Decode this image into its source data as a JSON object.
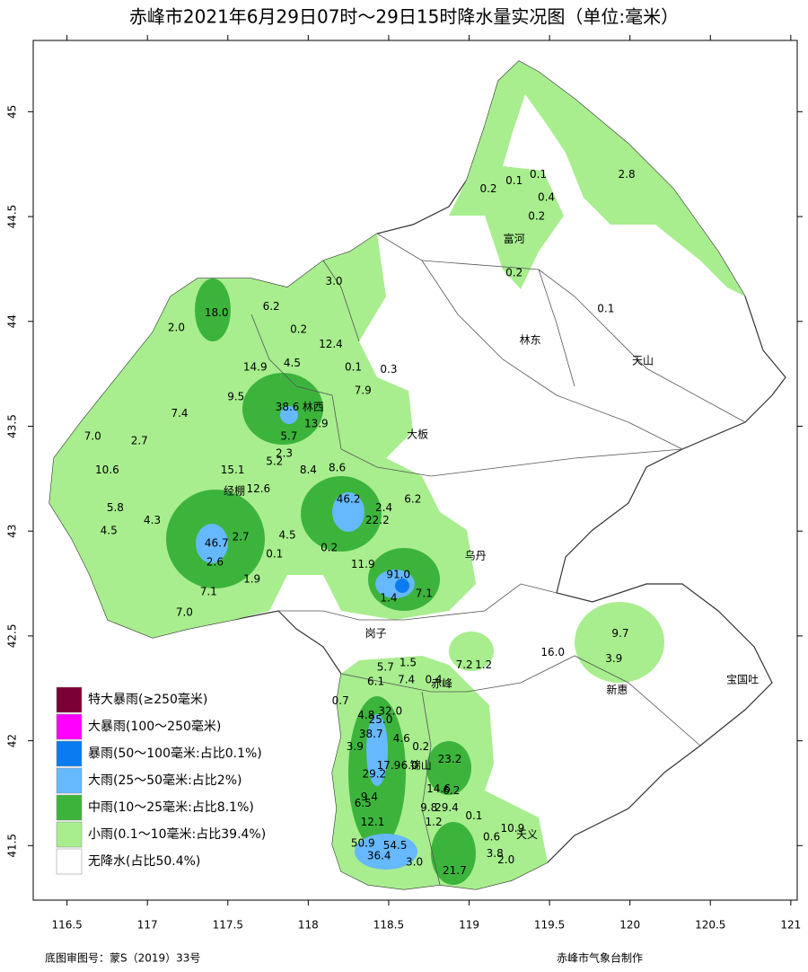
{
  "title": "赤峰市2021年6月29日07时～29日15时降水量实况图（单位:毫米）",
  "footer_left": "底图审图号：蒙S（2019）33号",
  "footer_right": "赤峰市气象台制作",
  "legend": [
    {
      "label": "特大暴雨(≥250毫米)",
      "color": "#7a0036"
    },
    {
      "label": "大暴雨(100～250毫米)",
      "color": "#ff00ff"
    },
    {
      "label": "暴雨(50～100毫米:占比0.1%)",
      "color": "#0a7cf0"
    },
    {
      "label": "大雨(25～50毫米:占比2%)",
      "color": "#66b8ff"
    },
    {
      "label": "中雨(10～25毫米:占比8.1%)",
      "color": "#3cb43c"
    },
    {
      "label": "小雨(0.1～10毫米:占比39.4%)",
      "color": "#a8ee8e"
    },
    {
      "label": "无降水(占比50.4%)",
      "color": "#ffffff"
    }
  ],
  "map": {
    "xlim": [
      116.29,
      121.04
    ],
    "ylim": [
      41.24,
      45.34
    ],
    "xticks": [
      116.5,
      117,
      117.5,
      118,
      118.5,
      119,
      119.5,
      120,
      120.5,
      121
    ],
    "yticks": [
      41.5,
      42,
      42.5,
      43,
      43.5,
      44,
      44.5,
      45
    ],
    "rain": {
      "lon": [
        119.98,
        119.43,
        119.28,
        119.12,
        119.48,
        119.42,
        119.28,
        119.85,
        117.43,
        117.18,
        117.77,
        118.16,
        117.94,
        118.14,
        117.67,
        117.9,
        118.28,
        118.5,
        117.55,
        118.34,
        117.87,
        118.05,
        117.2,
        116.66,
        116.95,
        117.88,
        117.85,
        117.79,
        116.75,
        117.53,
        118.0,
        118.18,
        117.69,
        118.25,
        118.65,
        118.47,
        116.8,
        118.43,
        117.03,
        116.76,
        117.58,
        117.87,
        117.43,
        118.13,
        117.79,
        117.42,
        118.34,
        118.56,
        117.65,
        117.38,
        118.72,
        118.5,
        117.23,
        119.94,
        119.9,
        119.52,
        118.97,
        119.09,
        118.62,
        118.48,
        118.42,
        118.61,
        118.78,
        118.2,
        118.51,
        118.36,
        118.45,
        118.39,
        118.58,
        118.7,
        118.29,
        118.88,
        118.5,
        118.63,
        118.41,
        118.81,
        118.89,
        118.38,
        118.34,
        118.75,
        118.86,
        119.03,
        118.4,
        118.78,
        119.27,
        118.34,
        118.54,
        119.14,
        118.44,
        119.16,
        119.23,
        118.66,
        118.91
      ],
      "lat": [
        44.7,
        44.7,
        44.67,
        44.63,
        44.59,
        44.5,
        44.23,
        44.06,
        44.04,
        43.97,
        44.07,
        44.19,
        43.96,
        43.89,
        43.78,
        43.8,
        43.78,
        43.77,
        43.64,
        43.67,
        43.59,
        43.51,
        43.56,
        43.45,
        43.43,
        43.45,
        43.37,
        43.33,
        43.29,
        43.29,
        43.29,
        43.3,
        43.2,
        43.15,
        43.15,
        43.11,
        43.11,
        43.05,
        43.05,
        43.0,
        42.97,
        42.98,
        42.94,
        42.92,
        42.89,
        42.85,
        42.84,
        42.79,
        42.77,
        42.71,
        42.7,
        42.68,
        42.61,
        42.51,
        42.39,
        42.42,
        42.36,
        42.36,
        42.37,
        42.35,
        42.28,
        42.29,
        42.29,
        42.19,
        42.14,
        42.12,
        42.1,
        42.03,
        42.01,
        41.97,
        41.97,
        41.91,
        41.88,
        41.88,
        41.84,
        41.77,
        41.76,
        41.73,
        41.7,
        41.68,
        41.68,
        41.64,
        41.61,
        41.61,
        41.58,
        41.51,
        41.5,
        41.54,
        41.45,
        41.46,
        41.43,
        41.42,
        41.38
      ],
      "values": [
        2.8,
        0.1,
        0.1,
        0.2,
        0.4,
        0.2,
        0.2,
        0.1,
        18,
        2,
        6.2,
        3,
        0.2,
        12.4,
        14.9,
        4.5,
        0.1,
        0.3,
        9.5,
        7.9,
        38.6,
        13.9,
        7.4,
        7,
        2.7,
        5.7,
        2.3,
        5.2,
        10.6,
        15.1,
        8.4,
        8.6,
        12.6,
        46.2,
        6.2,
        2.4,
        5.8,
        22.2,
        4.3,
        4.5,
        2.7,
        4.5,
        46.7,
        0.2,
        0.1,
        2.6,
        11.9,
        91,
        1.9,
        7.1,
        7.1,
        1.4,
        7,
        9.7,
        3.9,
        16,
        7.2,
        1.2,
        1.5,
        5.7,
        6.1,
        7.4,
        0.4,
        0.7,
        32,
        4.8,
        25,
        38.7,
        4.6,
        0.2,
        3.9,
        23.2,
        17.9,
        6,
        29.2,
        14.6,
        6.2,
        9.4,
        6.5,
        9.8,
        29.4,
        0.1,
        12.1,
        1.2,
        10.9,
        50.9,
        54.5,
        0.6,
        36.4,
        3.8,
        2,
        3,
        21.7
      ],
      "value_labels": [
        "2.8",
        "0.1",
        "0.1",
        "0.2",
        "0.4",
        "0.2",
        "0.2",
        "0.1",
        "18.0",
        "2.0",
        "6.2",
        "3.0",
        "0.2",
        "12.4",
        "14.9",
        "4.5",
        "0.1",
        "0.3",
        "9.5",
        "7.9",
        "38.6",
        "13.9",
        "7.4",
        "7.0",
        "2.7",
        "5.7",
        "2.3",
        "5.2",
        "10.6",
        "15.1",
        "8.4",
        "8.6",
        "12.6",
        "46.2",
        "6.2",
        "2.4",
        "5.8",
        "22.2",
        "4.3",
        "4.5",
        "2.7",
        "4.5",
        "46.7",
        "0.2",
        "0.1",
        "2.6",
        "11.9",
        "91.0",
        "1.9",
        "7.1",
        "7.1",
        "1.4",
        "7.0",
        "9.7",
        "3.9",
        "16.0",
        "7.2",
        "1.2",
        "1.5",
        "5.7",
        "6.1",
        "7.4",
        "0.4",
        "0.7",
        "32.0",
        "4.8",
        "25.0",
        "38.7",
        "4.6",
        "0.2",
        "3.9",
        "23.2",
        "17.9",
        "6.0",
        "29.2",
        "14.6",
        "6.2",
        "9.4",
        "6.5",
        "9.8",
        "29.4",
        "0.1",
        "12.1",
        "1.2",
        "10.9",
        "50.9",
        "54.5",
        "0.6",
        "36.4",
        "3.8",
        "2.0",
        "3.0",
        "21.7"
      ]
    },
    "places": {
      "names": [
        "富河",
        "林东",
        "天山",
        "林西",
        "大板",
        "经棚",
        "乌丹",
        "岗子",
        "赤峰",
        "新惠",
        "宝国吐",
        "锦山",
        "天义"
      ],
      "lon": [
        119.28,
        119.38,
        120.08,
        118.03,
        118.68,
        117.54,
        119.04,
        118.42,
        118.83,
        119.92,
        120.7,
        118.7,
        119.36
      ],
      "lat": [
        44.39,
        43.91,
        43.81,
        43.59,
        43.46,
        43.19,
        42.88,
        42.51,
        42.27,
        42.24,
        42.29,
        41.88,
        41.55
      ]
    }
  }
}
